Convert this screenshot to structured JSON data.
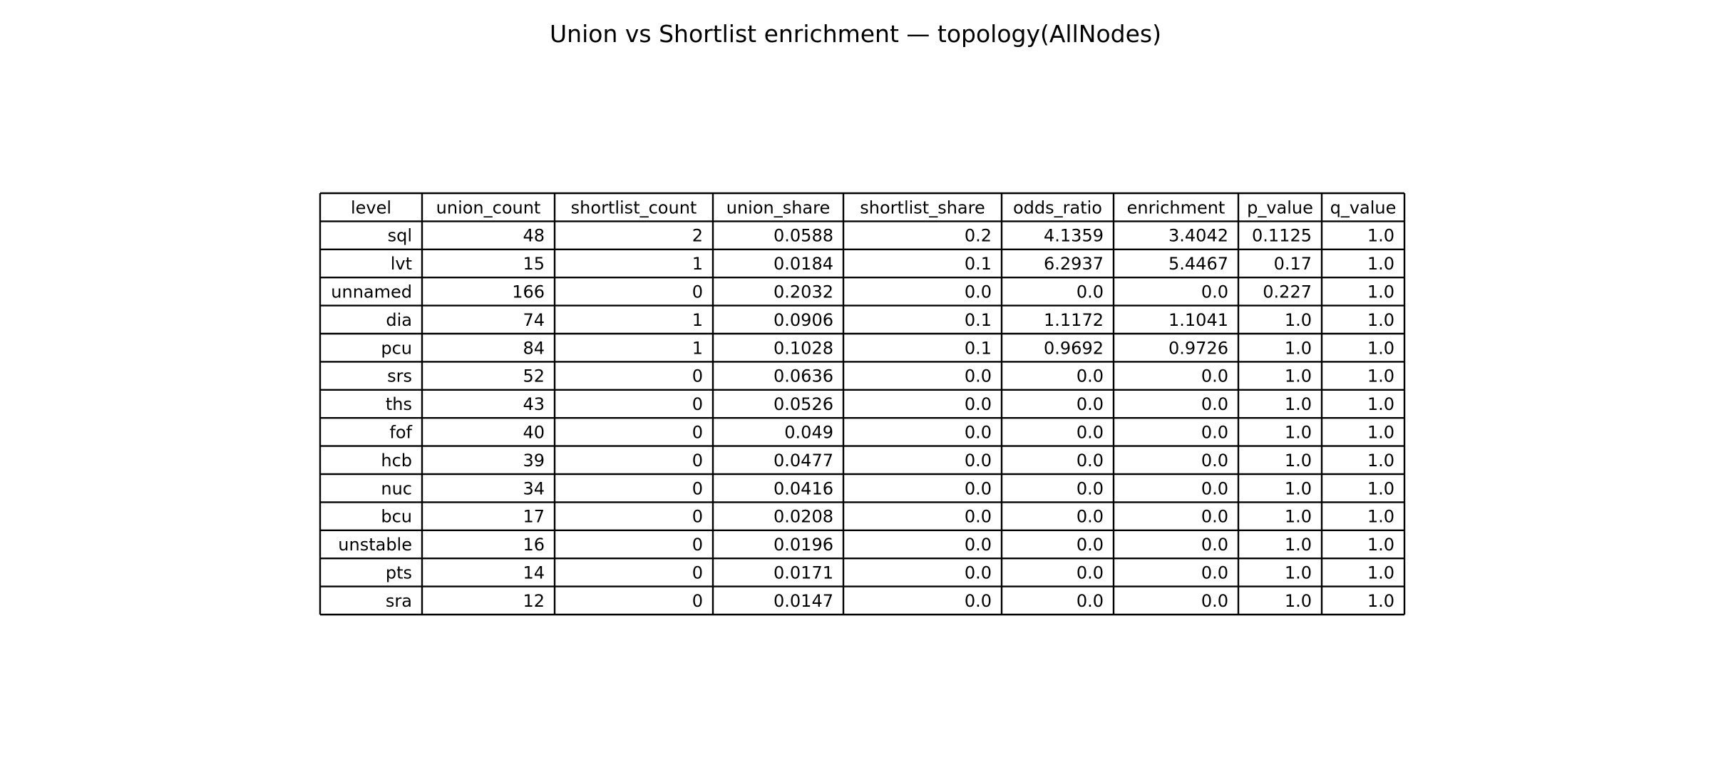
{
  "figure": {
    "title": "Union vs Shortlist enrichment — topology(AllNodes)"
  },
  "chart_data": {
    "type": "table",
    "title": "Union vs Shortlist enrichment — topology(AllNodes)",
    "columns": [
      "level",
      "union_count",
      "shortlist_count",
      "union_share",
      "shortlist_share",
      "odds_ratio",
      "enrichment",
      "p_value",
      "q_value"
    ],
    "rows": [
      [
        "sql",
        "48",
        "2",
        "0.0588",
        "0.2",
        "4.1359",
        "3.4042",
        "0.1125",
        "1.0"
      ],
      [
        "lvt",
        "15",
        "1",
        "0.0184",
        "0.1",
        "6.2937",
        "5.4467",
        "0.17",
        "1.0"
      ],
      [
        "unnamed",
        "166",
        "0",
        "0.2032",
        "0.0",
        "0.0",
        "0.0",
        "0.227",
        "1.0"
      ],
      [
        "dia",
        "74",
        "1",
        "0.0906",
        "0.1",
        "1.1172",
        "1.1041",
        "1.0",
        "1.0"
      ],
      [
        "pcu",
        "84",
        "1",
        "0.1028",
        "0.1",
        "0.9692",
        "0.9726",
        "1.0",
        "1.0"
      ],
      [
        "srs",
        "52",
        "0",
        "0.0636",
        "0.0",
        "0.0",
        "0.0",
        "1.0",
        "1.0"
      ],
      [
        "ths",
        "43",
        "0",
        "0.0526",
        "0.0",
        "0.0",
        "0.0",
        "1.0",
        "1.0"
      ],
      [
        "fof",
        "40",
        "0",
        "0.049",
        "0.0",
        "0.0",
        "0.0",
        "1.0",
        "1.0"
      ],
      [
        "hcb",
        "39",
        "0",
        "0.0477",
        "0.0",
        "0.0",
        "0.0",
        "1.0",
        "1.0"
      ],
      [
        "nuc",
        "34",
        "0",
        "0.0416",
        "0.0",
        "0.0",
        "0.0",
        "1.0",
        "1.0"
      ],
      [
        "bcu",
        "17",
        "0",
        "0.0208",
        "0.0",
        "0.0",
        "0.0",
        "1.0",
        "1.0"
      ],
      [
        "unstable",
        "16",
        "0",
        "0.0196",
        "0.0",
        "0.0",
        "0.0",
        "1.0",
        "1.0"
      ],
      [
        "pts",
        "14",
        "0",
        "0.0171",
        "0.0",
        "0.0",
        "0.0",
        "1.0",
        "1.0"
      ],
      [
        "sra",
        "12",
        "0",
        "0.0147",
        "0.0",
        "0.0",
        "0.0",
        "1.0",
        "1.0"
      ]
    ]
  }
}
